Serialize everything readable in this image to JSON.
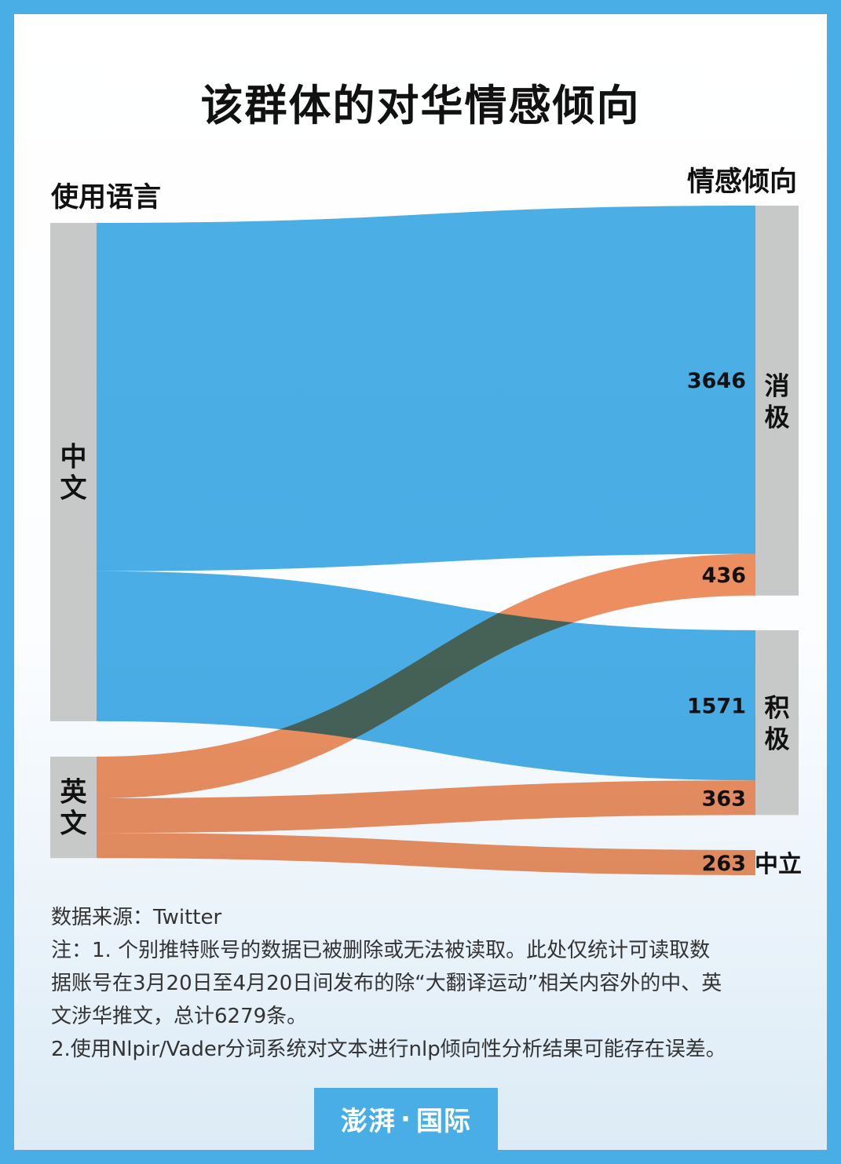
{
  "title": "该群体的对华情感倾向",
  "left_header": "使用语言",
  "right_header": "情感倾向",
  "colors": {
    "chinese_flow": "#47ade4",
    "english_flow": "#ef8552",
    "overlap": "#48564c",
    "node": "#c7c9c8",
    "frame": "#4aaee6"
  },
  "chart_data": {
    "type": "sankey",
    "title": "该群体的对华情感倾向",
    "source_header": "使用语言",
    "target_header": "情感倾向",
    "sources": [
      "中文",
      "英文"
    ],
    "targets": [
      "消极",
      "积极",
      "中立"
    ],
    "links": [
      {
        "source": "中文",
        "target": "消极",
        "value": 3646
      },
      {
        "source": "中文",
        "target": "积极",
        "value": 1571
      },
      {
        "source": "英文",
        "target": "消极",
        "value": 436
      },
      {
        "source": "英文",
        "target": "积极",
        "value": 363
      },
      {
        "source": "英文",
        "target": "中立",
        "value": 263
      }
    ]
  },
  "footnote": {
    "source": "数据来源：Twitter",
    "note1_line1": "注：1.    个别推特账号的数据已被删除或无法被读取。此处仅统计可读取数",
    "note1_line2": "据账号在3月20日至4月20日间发布的除“大翻译运动”相关内容外的中、英",
    "note1_line3": "文涉华推文，总计6279条。",
    "note2": "2.使用Nlpir/Vader分词系统对文本进行nlp倾向性分析结果可能存在误差。"
  },
  "brand": {
    "name": "澎湃",
    "sep": "·",
    "section": "国际"
  }
}
